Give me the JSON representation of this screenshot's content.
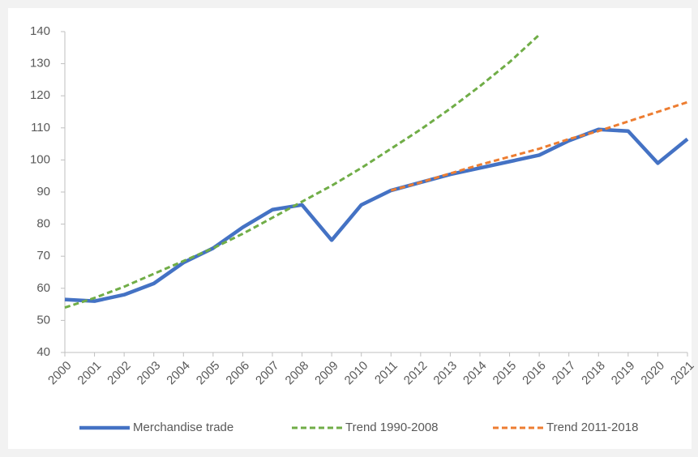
{
  "chart_data": {
    "type": "line",
    "categories": [
      "2000",
      "2001",
      "2002",
      "2003",
      "2004",
      "2005",
      "2006",
      "2007",
      "2008",
      "2009",
      "2010",
      "2011",
      "2012",
      "2013",
      "2014",
      "2015",
      "2016",
      "2017",
      "2018",
      "2019",
      "2020",
      "2021"
    ],
    "series": [
      {
        "name": "Merchandise trade",
        "color": "#4472c4",
        "dash": "solid",
        "values": [
          56.5,
          56,
          58,
          61.5,
          68,
          72.5,
          79,
          84.5,
          86,
          75,
          86,
          90.5,
          93,
          95.5,
          97.5,
          99.5,
          101.5,
          106,
          109.5,
          109,
          99,
          106.5
        ]
      },
      {
        "name": "Trend 1990-2008",
        "color": "#70ad47",
        "dash": "dashed",
        "values": [
          54,
          57,
          60.5,
          64.5,
          68.5,
          72.5,
          77,
          82,
          87,
          92,
          97.5,
          103.5,
          109.5,
          116,
          123,
          130.5,
          139,
          null,
          null,
          null,
          null,
          null
        ]
      },
      {
        "name": "Trend 2011-2018",
        "color": "#ed7d31",
        "dash": "dashed",
        "values": [
          null,
          null,
          null,
          null,
          null,
          null,
          null,
          null,
          null,
          null,
          null,
          90.5,
          93,
          95.8,
          98.5,
          101,
          103.5,
          106.5,
          109,
          112,
          115,
          118
        ]
      }
    ],
    "ylim": [
      40,
      140
    ],
    "yticks": [
      40,
      50,
      60,
      70,
      80,
      90,
      100,
      110,
      120,
      130,
      140
    ],
    "grid": false,
    "legend": "bottom"
  }
}
